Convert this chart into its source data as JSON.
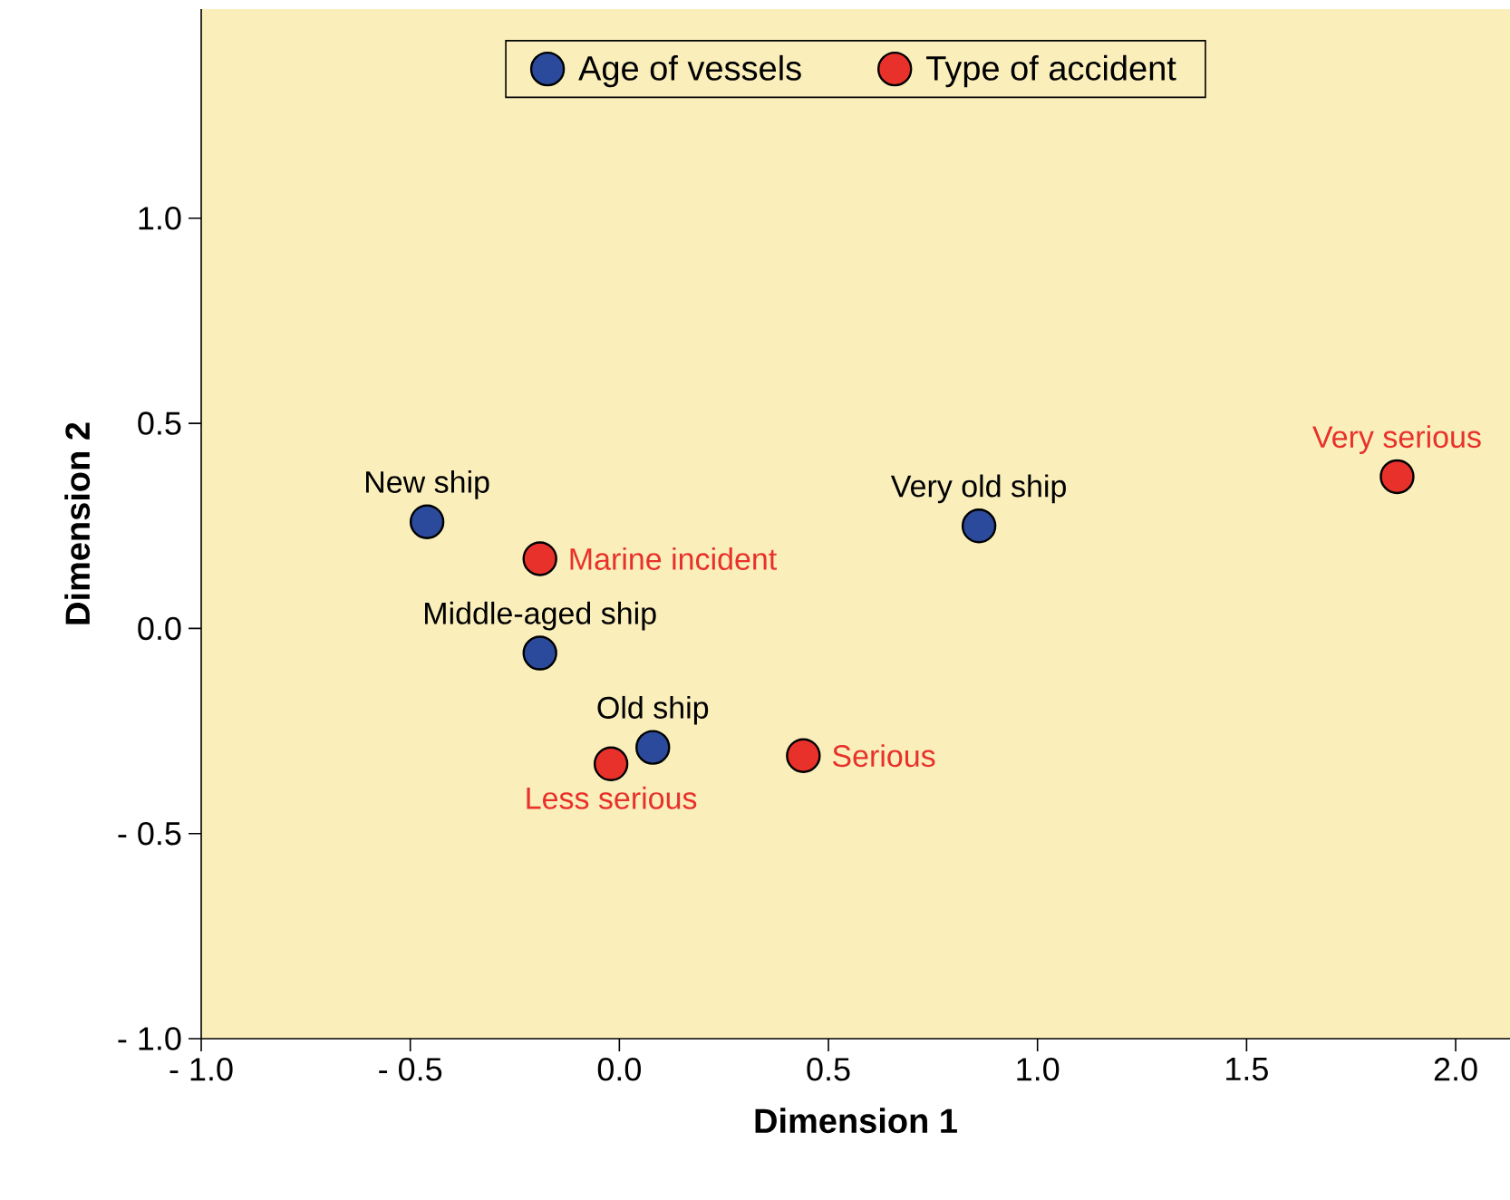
{
  "chart_data": {
    "type": "scatter",
    "xlabel": "Dimension 1",
    "ylabel": "Dimension 2",
    "series": [
      {
        "name": "Age of vessels",
        "color": "#2b4a9b",
        "x": [
          -0.46,
          -0.19,
          0.08,
          0.86
        ],
        "values": [
          0.26,
          -0.06,
          -0.29,
          0.25
        ]
      },
      {
        "name": "Type of accident",
        "color": "#e8312b",
        "x": [
          -0.19,
          -0.02,
          0.44,
          1.86
        ],
        "values": [
          0.17,
          -0.33,
          -0.31,
          0.37
        ]
      }
    ],
    "annotations": [
      {
        "text": "New ship",
        "x": -0.46,
        "y": 0.26
      },
      {
        "text": "Middle-aged ship",
        "x": -0.19,
        "y": -0.06
      },
      {
        "text": "Old ship",
        "x": 0.08,
        "y": -0.29
      },
      {
        "text": "Very old ship",
        "x": 0.86,
        "y": 0.25
      },
      {
        "text": "Marine incident",
        "x": -0.19,
        "y": 0.17
      },
      {
        "text": "Less serious",
        "x": -0.02,
        "y": -0.33
      },
      {
        "text": "Serious",
        "x": 0.44,
        "y": -0.31
      },
      {
        "text": "Very serious",
        "x": 1.86,
        "y": 0.37
      }
    ],
    "xlim": [
      -1.0,
      2.13
    ],
    "ylim": [
      -1.0,
      1.51
    ],
    "xticks": [
      {
        "value": -1.0,
        "label": "- 1.0"
      },
      {
        "value": -0.5,
        "label": "- 0.5"
      },
      {
        "value": 0.0,
        "label": "0.0"
      },
      {
        "value": 0.5,
        "label": "0.5"
      },
      {
        "value": 1.0,
        "label": "1.0"
      },
      {
        "value": 1.5,
        "label": "1.5"
      },
      {
        "value": 2.0,
        "label": "2.0"
      }
    ],
    "yticks": [
      {
        "value": -1.0,
        "label": "- 1.0"
      },
      {
        "value": -0.5,
        "label": "- 0.5"
      },
      {
        "value": 0.0,
        "label": "0.0"
      },
      {
        "value": 0.5,
        "label": "0.5"
      },
      {
        "value": 1.0,
        "label": "1.0"
      }
    ],
    "legend": "top",
    "marker": "circle",
    "grid": false
  }
}
